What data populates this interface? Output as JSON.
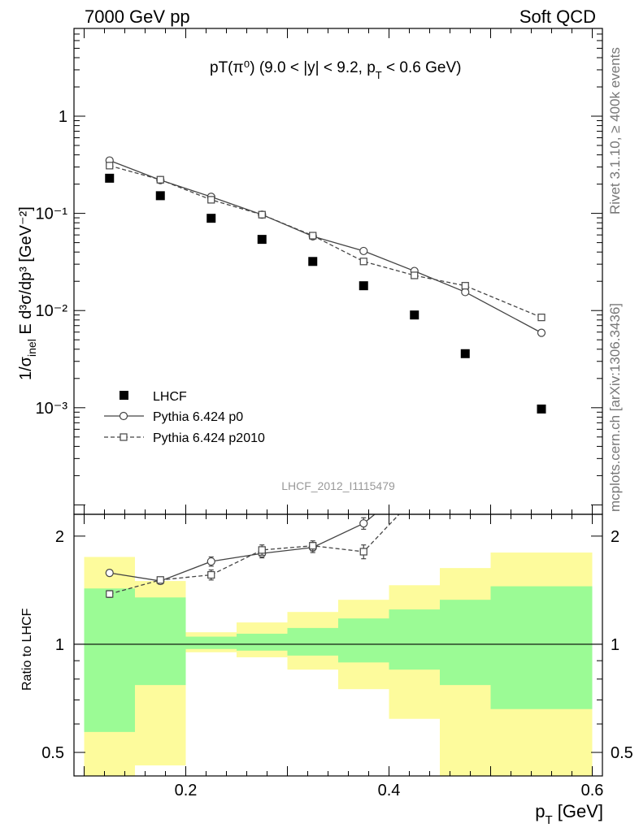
{
  "header": {
    "left": "7000 GeV pp",
    "right": "Soft QCD",
    "plot_title": "pT(π⁰) (9.0 < |y| < 9.2, p",
    "plot_title_sub": "T",
    "plot_title_tail": " < 0.6 GeV)"
  },
  "side_labels": {
    "rivet": "Rivet 3.1.10, ≥ 400k events",
    "mcplots": "mcplots.cern.ch [arXiv:1306.3436]"
  },
  "analysis_label": "LHCF_2012_I1115479",
  "ylabel_main": "1/σ",
  "ylabel_main_sub": "inel",
  "ylabel_main_rest": " E d³σ/dp³ [GeV⁻²]",
  "ylabel_ratio": "Ratio to LHCF",
  "xlabel": "p",
  "xlabel_sub": "T",
  "xlabel_rest": " [GeV]",
  "colors": {
    "band_inner": "#9bfb95",
    "band_outer": "#fdfb9c",
    "data": "#000000",
    "p0": "#444444",
    "p2010": "#444444"
  },
  "chart_data": [
    {
      "type": "scatter",
      "yscale": "log",
      "xlim": [
        0.09,
        0.61
      ],
      "ylim": [
        8e-05,
        8
      ],
      "yticks": [
        {
          "value": 1,
          "label": "1"
        },
        {
          "value": 0.1,
          "label": "10⁻¹"
        },
        {
          "value": 0.01,
          "label": "10⁻²"
        },
        {
          "value": 0.001,
          "label": "10⁻³"
        }
      ],
      "legend": {
        "placement": "bottom-left"
      },
      "series": [
        {
          "name": "LHCF",
          "marker": "filled-square",
          "x": [
            0.125,
            0.175,
            0.225,
            0.275,
            0.325,
            0.375,
            0.425,
            0.475,
            0.55
          ],
          "y": [
            0.23,
            0.152,
            0.089,
            0.054,
            0.032,
            0.018,
            0.009,
            0.0036,
            0.00097
          ]
        },
        {
          "name": "Pythia 6.424 p0",
          "marker": "open-circle",
          "line": "solid",
          "x": [
            0.125,
            0.175,
            0.225,
            0.275,
            0.325,
            0.375,
            0.425,
            0.475,
            0.55
          ],
          "y": [
            0.35,
            0.22,
            0.148,
            0.097,
            0.058,
            0.041,
            0.0255,
            0.0155,
            0.0059
          ]
        },
        {
          "name": "Pythia 6.424 p2010",
          "marker": "open-square",
          "line": "dashed",
          "x": [
            0.125,
            0.175,
            0.225,
            0.275,
            0.325,
            0.375,
            0.425,
            0.475,
            0.55
          ],
          "y": [
            0.31,
            0.222,
            0.138,
            0.097,
            0.059,
            0.032,
            0.023,
            0.018,
            0.0085
          ]
        }
      ]
    },
    {
      "type": "line",
      "yscale": "log",
      "xlim": [
        0.09,
        0.61
      ],
      "ylim": [
        0.43,
        2.3
      ],
      "xticks": [
        {
          "value": 0.2,
          "label": "0.2"
        },
        {
          "value": 0.4,
          "label": "0.4"
        },
        {
          "value": 0.6,
          "label": "0.6"
        }
      ],
      "yticks": [
        {
          "value": 2,
          "label": "2"
        },
        {
          "value": 1,
          "label": "1"
        },
        {
          "value": 0.5,
          "label": "0.5"
        }
      ],
      "bands": [
        {
          "x0": 0.1,
          "x1": 0.15,
          "inner": [
            0.57,
            1.43
          ],
          "outer": [
            0.4,
            1.75
          ]
        },
        {
          "x0": 0.15,
          "x1": 0.2,
          "inner": [
            0.77,
            1.35
          ],
          "outer": [
            0.46,
            1.5
          ]
        },
        {
          "x0": 0.2,
          "x1": 0.25,
          "inner": [
            0.97,
            1.05
          ],
          "outer": [
            0.95,
            1.08
          ]
        },
        {
          "x0": 0.25,
          "x1": 0.3,
          "inner": [
            0.96,
            1.07
          ],
          "outer": [
            0.92,
            1.15
          ]
        },
        {
          "x0": 0.3,
          "x1": 0.35,
          "inner": [
            0.93,
            1.11
          ],
          "outer": [
            0.85,
            1.23
          ]
        },
        {
          "x0": 0.35,
          "x1": 0.4,
          "inner": [
            0.89,
            1.18
          ],
          "outer": [
            0.75,
            1.33
          ]
        },
        {
          "x0": 0.4,
          "x1": 0.45,
          "inner": [
            0.85,
            1.25
          ],
          "outer": [
            0.62,
            1.46
          ]
        },
        {
          "x0": 0.45,
          "x1": 0.5,
          "inner": [
            0.77,
            1.33
          ],
          "outer": [
            0.41,
            1.63
          ]
        },
        {
          "x0": 0.5,
          "x1": 0.6,
          "inner": [
            0.66,
            1.45
          ],
          "outer": [
            0.4,
            1.8
          ]
        }
      ],
      "series": [
        {
          "name": "Pythia 6.424 p0",
          "marker": "open-circle",
          "line": "solid",
          "x": [
            0.125,
            0.175,
            0.225,
            0.275,
            0.325,
            0.375,
            0.425
          ],
          "y": [
            1.58,
            1.5,
            1.7,
            1.79,
            1.86,
            2.17,
            2.83
          ],
          "err": [
            0.03,
            0.03,
            0.05,
            0.05,
            0.06,
            0.08,
            0.0
          ]
        },
        {
          "name": "Pythia 6.424 p2010",
          "marker": "open-square",
          "line": "dashed",
          "x": [
            0.125,
            0.175,
            0.225,
            0.275,
            0.325,
            0.375,
            0.425
          ],
          "y": [
            1.38,
            1.51,
            1.56,
            1.83,
            1.88,
            1.81,
            2.55
          ],
          "err": [
            0.03,
            0.03,
            0.05,
            0.06,
            0.06,
            0.08,
            0.0
          ]
        }
      ]
    }
  ]
}
